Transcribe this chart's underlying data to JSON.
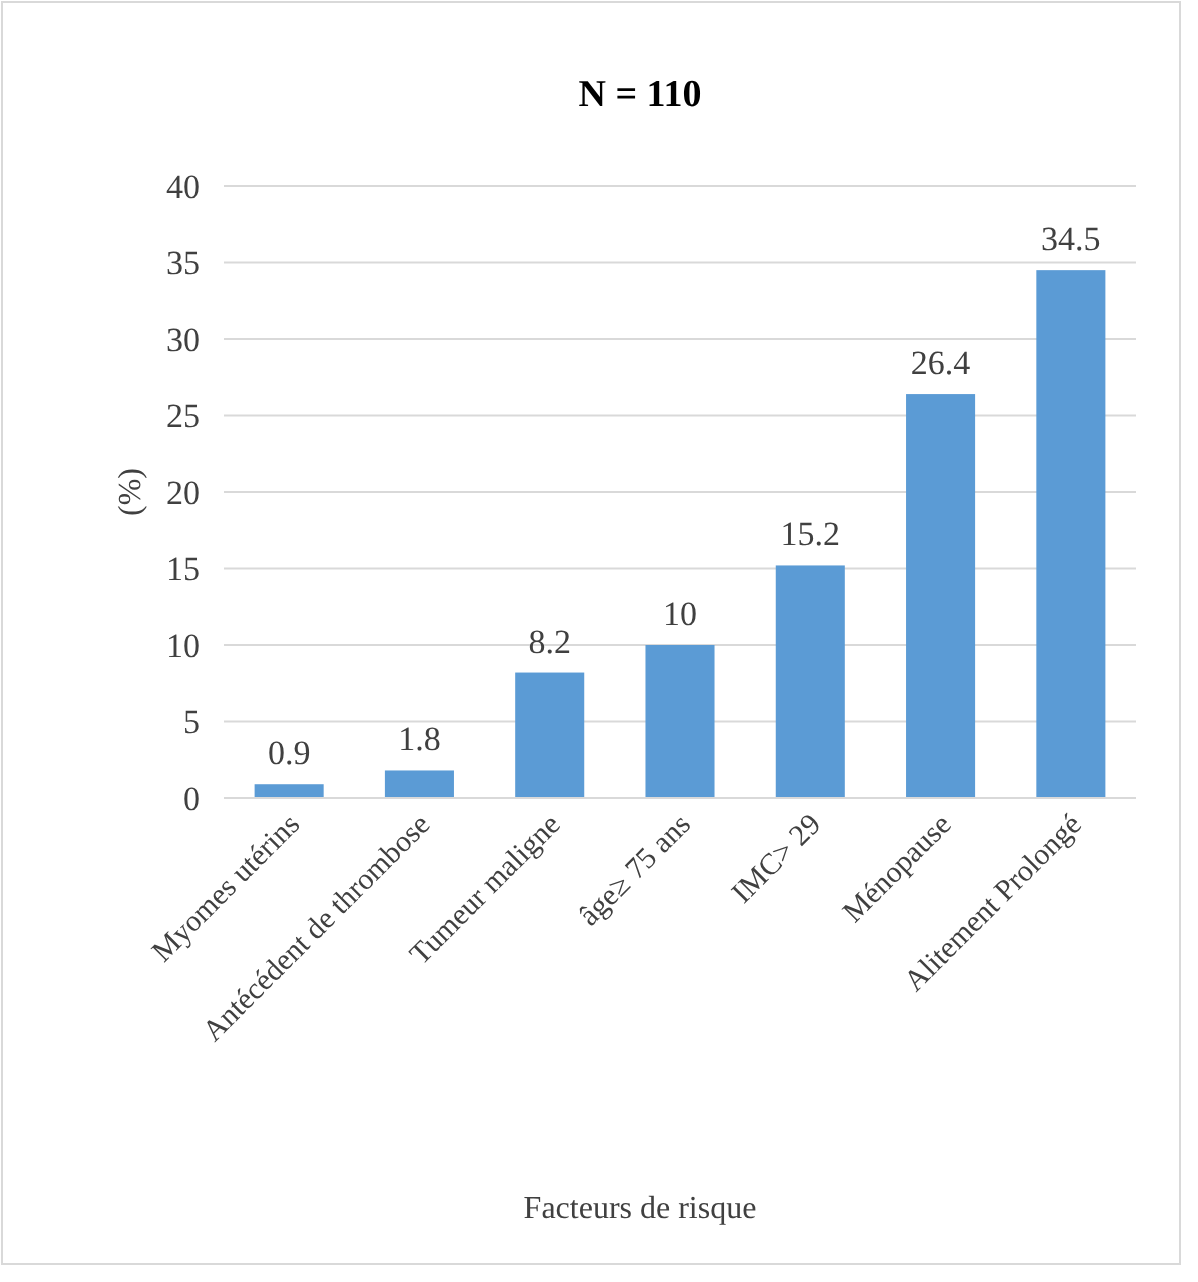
{
  "chart_data": {
    "type": "bar",
    "title": "N = 110",
    "xlabel": "Facteurs de risque",
    "ylabel": "(%)",
    "categories": [
      "Myomes utérins",
      "Antécédent de thrombose",
      "Tumeur maligne",
      "âge≥ 75 ans",
      "IMC> 29",
      "Ménopause",
      "Alitement Prolongé"
    ],
    "values": [
      0.9,
      1.8,
      8.2,
      10,
      15.2,
      26.4,
      34.5
    ],
    "color": "#5b9bd5",
    "ylim": [
      0,
      40
    ],
    "yticks": [
      0,
      5,
      10,
      15,
      20,
      25,
      30,
      35,
      40
    ],
    "grid": "y",
    "data_labels": true
  }
}
